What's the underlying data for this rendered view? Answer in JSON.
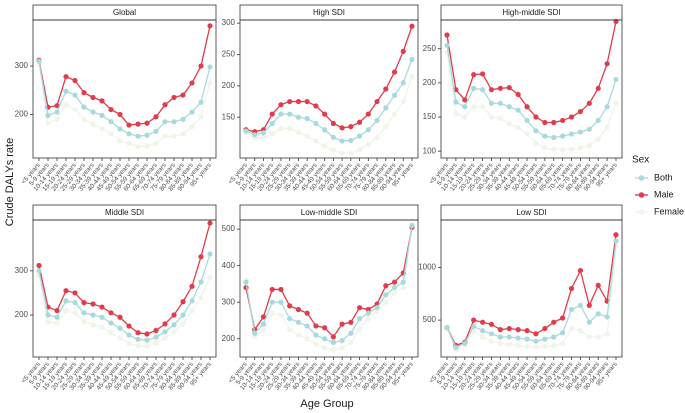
{
  "y_label": "Crude DALYs rate",
  "x_label": "Age Group",
  "legend": {
    "title": "Sex"
  },
  "chart_data": [
    {
      "type": "line",
      "title": "Global",
      "categories": [
        "<5 years",
        "5-9 years",
        "10-14 years",
        "15-19 years",
        "20-24 years",
        "25-29 years",
        "30-34 years",
        "35-39 years",
        "40-44 years",
        "45-49 years",
        "50-54 years",
        "55-59 years",
        "60-64 years",
        "65-69 years",
        "70-74 years",
        "75-79 years",
        "80-84 years",
        "85-89 years",
        "90-94 years",
        "95+ years"
      ],
      "series": [
        {
          "name": "Both",
          "color": "#a8dadc",
          "values": [
            310,
            198,
            205,
            248,
            240,
            215,
            205,
            198,
            185,
            170,
            160,
            155,
            157,
            165,
            185,
            185,
            190,
            205,
            225,
            298
          ]
        },
        {
          "name": "Male",
          "color": "#e03c4b",
          "values": [
            312,
            215,
            218,
            278,
            270,
            245,
            235,
            228,
            210,
            200,
            178,
            180,
            182,
            195,
            220,
            235,
            240,
            265,
            300,
            383
          ]
        },
        {
          "name": "Female",
          "color": "#eef5e9",
          "values": [
            305,
            182,
            190,
            220,
            210,
            190,
            180,
            170,
            160,
            145,
            140,
            133,
            135,
            140,
            155,
            155,
            160,
            175,
            195,
            265
          ]
        }
      ],
      "ylim": [
        110,
        395
      ],
      "yticks": [
        200,
        300
      ]
    },
    {
      "type": "line",
      "title": "High SDI",
      "categories": [
        "<5 years",
        "5-9 years",
        "10-14 years",
        "15-19 years",
        "20-24 years",
        "25-29 years",
        "30-34 years",
        "35-39 years",
        "40-44 years",
        "45-49 years",
        "50-54 years",
        "55-59 years",
        "60-64 years",
        "65-69 years",
        "70-74 years",
        "75-79 years",
        "80-84 years",
        "85-89 years",
        "90-94 years",
        "95+ years"
      ],
      "series": [
        {
          "name": "Both",
          "color": "#a8dadc",
          "values": [
            128,
            122,
            125,
            140,
            155,
            155,
            150,
            148,
            140,
            130,
            118,
            112,
            113,
            120,
            130,
            145,
            165,
            185,
            205,
            242
          ]
        },
        {
          "name": "Male",
          "color": "#e03c4b",
          "values": [
            130,
            127,
            130,
            155,
            170,
            175,
            175,
            175,
            168,
            155,
            140,
            133,
            135,
            142,
            155,
            175,
            195,
            222,
            255,
            295
          ]
        },
        {
          "name": "Female",
          "color": "#eef5e9",
          "values": [
            125,
            117,
            118,
            124,
            132,
            132,
            126,
            120,
            112,
            104,
            97,
            93,
            93,
            98,
            107,
            118,
            135,
            155,
            175,
            215
          ]
        }
      ],
      "ylim": [
        85,
        305
      ],
      "yticks": [
        150,
        200,
        250,
        300
      ]
    },
    {
      "type": "line",
      "title": "High-middle SDI",
      "categories": [
        "<5 years",
        "5-9 years",
        "10-14 years",
        "15-19 years",
        "20-24 years",
        "25-29 years",
        "30-34 years",
        "35-39 years",
        "40-44 years",
        "45-49 years",
        "50-54 years",
        "55-59 years",
        "60-64 years",
        "65-69 years",
        "70-74 years",
        "75-79 years",
        "80-84 years",
        "85-89 years",
        "90-94 years",
        "95+ years"
      ],
      "series": [
        {
          "name": "Both",
          "color": "#a8dadc",
          "values": [
            255,
            172,
            165,
            192,
            190,
            170,
            170,
            165,
            160,
            145,
            130,
            122,
            120,
            122,
            125,
            128,
            132,
            145,
            165,
            205
          ]
        },
        {
          "name": "Male",
          "color": "#e03c4b",
          "values": [
            270,
            190,
            175,
            212,
            213,
            190,
            192,
            193,
            183,
            165,
            150,
            142,
            142,
            145,
            150,
            158,
            170,
            192,
            228,
            290
          ]
        },
        {
          "name": "Female",
          "color": "#eef5e9",
          "values": [
            245,
            155,
            150,
            165,
            165,
            150,
            148,
            140,
            135,
            125,
            112,
            105,
            103,
            102,
            103,
            105,
            108,
            118,
            135,
            170
          ]
        }
      ],
      "ylim": [
        90,
        292
      ],
      "yticks": [
        100,
        150,
        200,
        250
      ]
    },
    {
      "type": "line",
      "title": "Middle SDI",
      "categories": [
        "<5 years",
        "5-9 years",
        "10-14 years",
        "15-19 years",
        "20-24 years",
        "25-29 years",
        "30-34 years",
        "35-39 years",
        "40-44 years",
        "45-49 years",
        "50-54 years",
        "55-59 years",
        "60-64 years",
        "65-69 years",
        "70-74 years",
        "75-79 years",
        "80-84 years",
        "85-89 years",
        "90-94 years",
        "95+ years"
      ],
      "series": [
        {
          "name": "Both",
          "color": "#a8dadc",
          "values": [
            300,
            200,
            195,
            232,
            228,
            205,
            200,
            195,
            182,
            170,
            155,
            145,
            143,
            150,
            162,
            178,
            200,
            232,
            275,
            338
          ]
        },
        {
          "name": "Male",
          "color": "#e03c4b",
          "values": [
            312,
            218,
            210,
            255,
            250,
            228,
            225,
            218,
            205,
            195,
            175,
            160,
            157,
            165,
            180,
            200,
            230,
            265,
            332,
            408
          ]
        },
        {
          "name": "Female",
          "color": "#eef5e9",
          "values": [
            290,
            185,
            182,
            210,
            205,
            185,
            178,
            172,
            160,
            148,
            135,
            130,
            130,
            137,
            148,
            162,
            180,
            210,
            240,
            285
          ]
        }
      ],
      "ylim": [
        105,
        415
      ],
      "yticks": [
        200,
        300
      ]
    },
    {
      "type": "line",
      "title": "Low-middle SDI",
      "categories": [
        "<5 years",
        "5-9 years",
        "10-14 years",
        "15-19 years",
        "20-24 years",
        "25-29 years",
        "30-34 years",
        "35-39 years",
        "40-44 years",
        "45-49 years",
        "50-54 years",
        "55-59 years",
        "60-64 years",
        "65-69 years",
        "70-74 years",
        "75-79 years",
        "80-84 years",
        "85-89 years",
        "90-94 years",
        "95+ years"
      ],
      "series": [
        {
          "name": "Both",
          "color": "#a8dadc",
          "values": [
            355,
            215,
            240,
            300,
            300,
            255,
            245,
            235,
            210,
            200,
            190,
            195,
            215,
            255,
            270,
            285,
            320,
            340,
            355,
            510
          ]
        },
        {
          "name": "Male",
          "color": "#e03c4b",
          "values": [
            340,
            225,
            260,
            335,
            335,
            290,
            280,
            270,
            235,
            230,
            205,
            240,
            245,
            285,
            280,
            295,
            345,
            355,
            380,
            505
          ]
        },
        {
          "name": "Female",
          "color": "#eef5e9",
          "values": [
            360,
            205,
            225,
            270,
            265,
            225,
            210,
            200,
            185,
            175,
            170,
            175,
            190,
            225,
            255,
            275,
            300,
            325,
            340,
            505
          ]
        }
      ],
      "ylim": [
        150,
        525
      ],
      "yticks": [
        200,
        300,
        400,
        500
      ]
    },
    {
      "type": "line",
      "title": "Low SDI",
      "categories": [
        "<5 years",
        "5-9 years",
        "10-14 years",
        "15-19 years",
        "20-24 years",
        "25-29 years",
        "30-34 years",
        "35-39 years",
        "40-44 years",
        "45-49 years",
        "50-54 years",
        "55-59 years",
        "60-64 years",
        "65-69 years",
        "70-74 years",
        "75-79 years",
        "80-84 years",
        "85-89 years",
        "90-94 years",
        "95+ years"
      ],
      "series": [
        {
          "name": "Both",
          "color": "#a8dadc",
          "values": [
            430,
            240,
            280,
            440,
            400,
            370,
            340,
            340,
            330,
            320,
            300,
            320,
            340,
            380,
            600,
            640,
            480,
            560,
            530,
            1250
          ]
        },
        {
          "name": "Male",
          "color": "#e03c4b",
          "values": [
            430,
            260,
            290,
            500,
            480,
            460,
            410,
            420,
            410,
            400,
            370,
            420,
            480,
            520,
            800,
            970,
            640,
            830,
            680,
            1310
          ]
        },
        {
          "name": "Female",
          "color": "#eef5e9",
          "values": [
            425,
            220,
            260,
            390,
            340,
            300,
            280,
            270,
            260,
            250,
            240,
            250,
            260,
            280,
            420,
            400,
            340,
            340,
            370,
            1200
          ]
        }
      ],
      "ylim": [
        150,
        1450
      ],
      "yticks": [
        500,
        1000
      ]
    }
  ]
}
